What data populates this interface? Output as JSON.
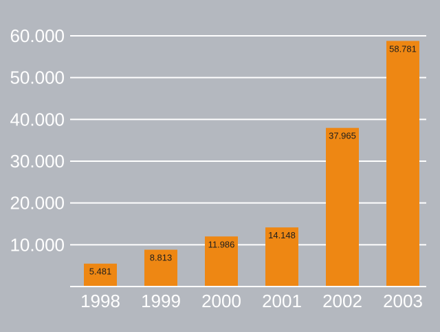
{
  "chart_data": {
    "type": "bar",
    "title": "",
    "xlabel": "",
    "ylabel": "",
    "categories": [
      "1998",
      "1999",
      "2000",
      "2001",
      "2002",
      "2003"
    ],
    "values": [
      5481,
      8813,
      11986,
      14148,
      37965,
      58781
    ],
    "value_labels": [
      "5.481",
      "8.813",
      "11.986",
      "14.148",
      "37.965",
      "58.781"
    ],
    "ylim": [
      0,
      60000
    ],
    "yticks": [
      10000,
      20000,
      30000,
      40000,
      50000,
      60000
    ],
    "ytick_labels": [
      "10.000",
      "20.000",
      "30.000",
      "40.000",
      "50.000",
      "60.000"
    ],
    "grid": true,
    "legend": "none",
    "colors": {
      "background": "#b4b8bf",
      "bar": "#ee8713",
      "grid": "#ffffff",
      "text": "#ffffff",
      "label_text": "#1e1e1e"
    }
  }
}
